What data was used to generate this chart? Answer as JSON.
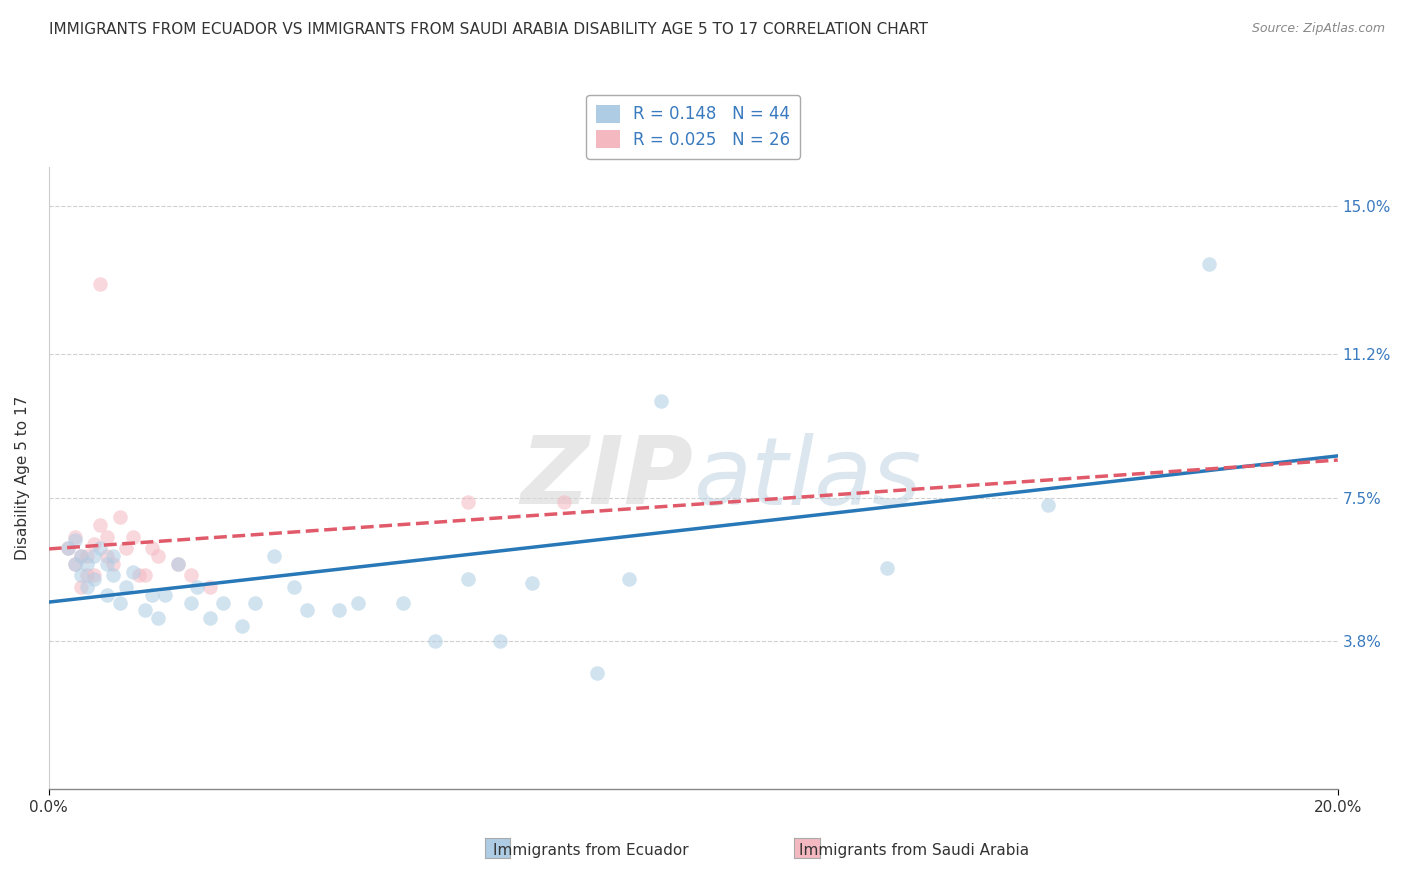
{
  "title": "IMMIGRANTS FROM ECUADOR VS IMMIGRANTS FROM SAUDI ARABIA DISABILITY AGE 5 TO 17 CORRELATION CHART",
  "source": "Source: ZipAtlas.com",
  "ylabel": "Disability Age 5 to 17",
  "xlim": [
    0,
    0.2
  ],
  "ylim": [
    0,
    0.16
  ],
  "yticks": [
    0.038,
    0.075,
    0.112,
    0.15
  ],
  "ytick_labels": [
    "3.8%",
    "7.5%",
    "11.2%",
    "15.0%"
  ],
  "xticks": [
    0.0,
    0.2
  ],
  "xtick_labels": [
    "0.0%",
    "20.0%"
  ],
  "watermark": "ZIPatlas",
  "ecuador_x": [
    0.003,
    0.004,
    0.004,
    0.005,
    0.005,
    0.006,
    0.006,
    0.007,
    0.007,
    0.008,
    0.009,
    0.009,
    0.01,
    0.01,
    0.011,
    0.012,
    0.013,
    0.015,
    0.016,
    0.017,
    0.018,
    0.02,
    0.022,
    0.023,
    0.025,
    0.027,
    0.03,
    0.032,
    0.035,
    0.038,
    0.04,
    0.045,
    0.048,
    0.055,
    0.06,
    0.065,
    0.07,
    0.075,
    0.085,
    0.09,
    0.095,
    0.13,
    0.155,
    0.18
  ],
  "ecuador_y": [
    0.062,
    0.058,
    0.064,
    0.06,
    0.055,
    0.052,
    0.058,
    0.06,
    0.054,
    0.062,
    0.058,
    0.05,
    0.055,
    0.06,
    0.048,
    0.052,
    0.056,
    0.046,
    0.05,
    0.044,
    0.05,
    0.058,
    0.048,
    0.052,
    0.044,
    0.048,
    0.042,
    0.048,
    0.06,
    0.052,
    0.046,
    0.046,
    0.048,
    0.048,
    0.038,
    0.054,
    0.038,
    0.053,
    0.03,
    0.054,
    0.1,
    0.057,
    0.073,
    0.135
  ],
  "saudi_x": [
    0.003,
    0.004,
    0.004,
    0.005,
    0.005,
    0.006,
    0.006,
    0.007,
    0.007,
    0.008,
    0.008,
    0.009,
    0.009,
    0.01,
    0.011,
    0.012,
    0.013,
    0.014,
    0.015,
    0.016,
    0.017,
    0.02,
    0.022,
    0.025,
    0.065,
    0.08
  ],
  "saudi_y": [
    0.062,
    0.058,
    0.065,
    0.052,
    0.06,
    0.055,
    0.06,
    0.063,
    0.055,
    0.068,
    0.13,
    0.06,
    0.065,
    0.058,
    0.07,
    0.062,
    0.065,
    0.055,
    0.055,
    0.062,
    0.06,
    0.058,
    0.055,
    0.052,
    0.074,
    0.074
  ],
  "ecuador_color": "#aecde4",
  "saudi_color": "#f4b8c1",
  "ecuador_line_color": "#2878b8",
  "saudi_line_color": "#e05a6a",
  "background_color": "#ffffff",
  "grid_color": "#d0d0d0",
  "title_fontsize": 11,
  "axis_label_fontsize": 11,
  "tick_fontsize": 11,
  "legend_fontsize": 12,
  "dot_size": 110,
  "dot_alpha": 0.55
}
